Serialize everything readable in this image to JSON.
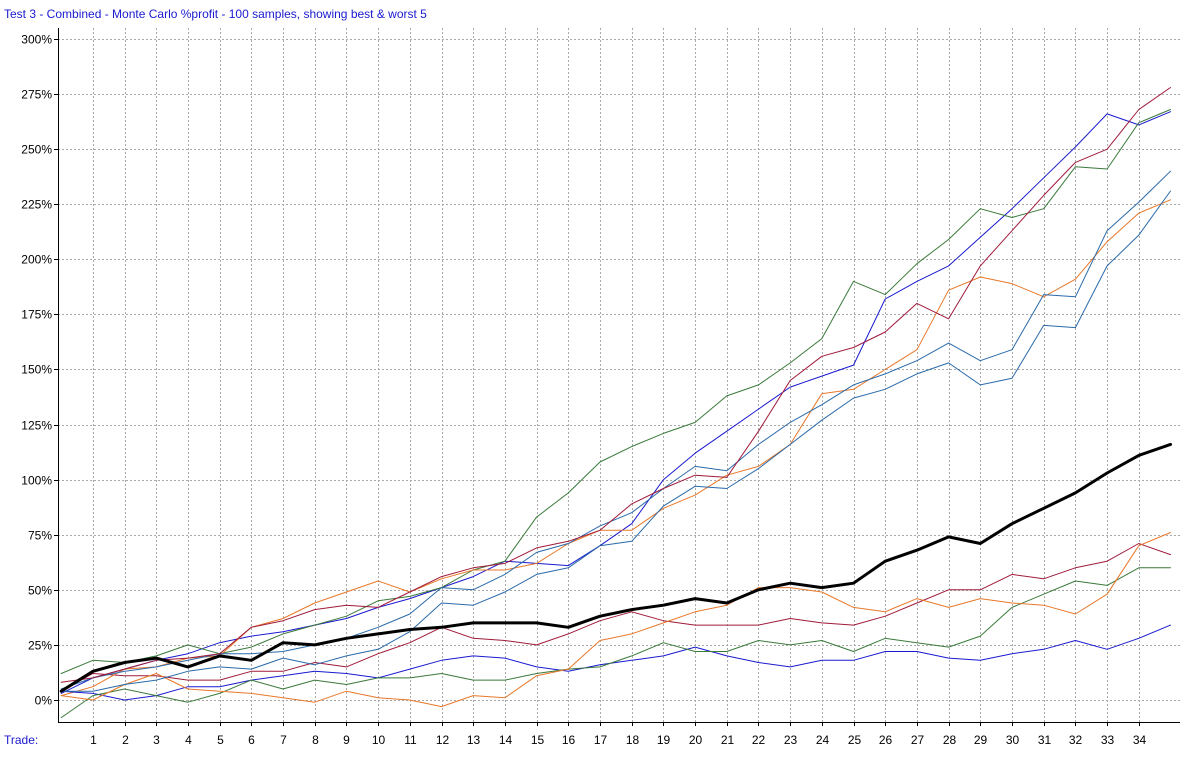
{
  "chart_data": {
    "type": "line",
    "title": "Test 3 - Combined - Monte Carlo %profit - 100 samples, showing best & worst 5",
    "xlabel": "Trade:",
    "ylabel": "",
    "x": [
      0,
      1,
      2,
      3,
      4,
      5,
      6,
      7,
      8,
      9,
      10,
      11,
      12,
      13,
      14,
      15,
      16,
      17,
      18,
      19,
      20,
      21,
      22,
      23,
      24,
      25,
      26,
      27,
      28,
      29,
      30,
      31,
      32,
      33,
      34,
      35
    ],
    "xticks": [
      1,
      2,
      3,
      4,
      5,
      6,
      7,
      8,
      9,
      10,
      11,
      12,
      13,
      14,
      15,
      16,
      17,
      18,
      19,
      20,
      21,
      22,
      23,
      24,
      25,
      26,
      27,
      28,
      29,
      30,
      31,
      32,
      33,
      34
    ],
    "xlim": [
      -0.1,
      35.3
    ],
    "yticks": [
      0,
      25,
      50,
      75,
      100,
      125,
      150,
      175,
      200,
      225,
      250,
      275,
      300
    ],
    "ytick_labels": [
      "0%",
      "25%",
      "50%",
      "75%",
      "100%",
      "125%",
      "150%",
      "175%",
      "200%",
      "225%",
      "250%",
      "275%",
      "300%"
    ],
    "ylim": [
      -10,
      305
    ],
    "grid": true,
    "legend": "none",
    "series": [
      {
        "color": "#000000",
        "width": 3,
        "values": [
          4,
          13,
          17,
          19,
          15,
          20,
          18,
          26,
          25,
          28,
          30,
          32,
          33,
          35,
          35,
          35,
          33,
          38,
          41,
          43,
          46,
          44,
          50,
          53,
          51,
          53,
          63,
          68,
          74,
          71,
          80,
          87,
          94,
          103,
          111,
          116
        ]
      },
      {
        "color": "#1a1ad0",
        "width": 1,
        "values": [
          3,
          10,
          14,
          18,
          21,
          26,
          29,
          31,
          34,
          37,
          42,
          46,
          51,
          56,
          63,
          62,
          61,
          70,
          80,
          100,
          112,
          122,
          132,
          142,
          147,
          152,
          182,
          190,
          197,
          210,
          223,
          237,
          251,
          266,
          261,
          267
        ]
      },
      {
        "color": "#3a7a3a",
        "width": 1,
        "values": [
          12,
          18,
          17,
          20,
          25,
          21,
          24,
          30,
          34,
          38,
          45,
          47,
          51,
          59,
          63,
          83,
          94,
          108,
          115,
          121,
          126,
          138,
          143,
          153,
          164,
          190,
          184,
          198,
          209,
          223,
          219,
          223,
          242,
          241,
          262,
          268
        ]
      },
      {
        "color": "#a01a3a",
        "width": 1,
        "values": [
          4,
          12,
          11,
          11,
          9,
          9,
          13,
          13,
          17,
          15,
          21,
          26,
          33,
          28,
          27,
          25,
          30,
          36,
          40,
          36,
          34,
          34,
          34,
          37,
          35,
          34,
          38,
          44,
          50,
          50,
          57,
          55,
          60,
          63,
          71,
          66
        ]
      },
      {
        "color": "#e8782a",
        "width": 1,
        "values": [
          2,
          6,
          14,
          15,
          19,
          20,
          33,
          37,
          44,
          49,
          54,
          49,
          55,
          59,
          59,
          62,
          71,
          77,
          77,
          87,
          93,
          102,
          106,
          116,
          139,
          141,
          150,
          159,
          186,
          192,
          189,
          183,
          191,
          208,
          221,
          227
        ]
      },
      {
        "color": "#2a6aaa",
        "width": 1,
        "values": [
          5,
          10,
          13,
          15,
          18,
          21,
          21,
          22,
          25,
          28,
          33,
          39,
          51,
          50,
          57,
          67,
          71,
          79,
          85,
          96,
          106,
          104,
          116,
          126,
          134,
          143,
          148,
          154,
          162,
          154,
          159,
          184,
          183,
          213,
          226,
          240
        ]
      },
      {
        "color": "#1a1ad0",
        "width": 1,
        "values": [
          4,
          3,
          0,
          2,
          6,
          6,
          9,
          11,
          13,
          12,
          10,
          14,
          18,
          20,
          19,
          15,
          13,
          16,
          18,
          20,
          24,
          20,
          17,
          15,
          18,
          18,
          22,
          22,
          19,
          18,
          21,
          23,
          27,
          23,
          28,
          34
        ]
      },
      {
        "color": "#3a7a3a",
        "width": 1,
        "values": [
          -8,
          2,
          5,
          2,
          -1,
          3,
          9,
          5,
          9,
          7,
          10,
          10,
          12,
          9,
          9,
          12,
          14,
          15,
          20,
          26,
          22,
          22,
          27,
          25,
          27,
          22,
          28,
          26,
          24,
          29,
          42,
          48,
          54,
          52,
          60,
          60
        ]
      },
      {
        "color": "#a01a3a",
        "width": 1,
        "values": [
          8,
          10,
          14,
          18,
          19,
          21,
          33,
          36,
          41,
          43,
          42,
          49,
          56,
          60,
          62,
          69,
          72,
          77,
          89,
          96,
          102,
          101,
          122,
          145,
          156,
          160,
          167,
          180,
          173,
          197,
          213,
          229,
          244,
          250,
          268,
          278
        ]
      },
      {
        "color": "#e8782a",
        "width": 1,
        "values": [
          2,
          0,
          7,
          12,
          5,
          4,
          3,
          1,
          -1,
          4,
          1,
          0,
          -3,
          2,
          1,
          11,
          14,
          27,
          30,
          35,
          40,
          43,
          51,
          51,
          49,
          42,
          40,
          46,
          42,
          46,
          44,
          43,
          39,
          48,
          70,
          76
        ]
      },
      {
        "color": "#2a6aaa",
        "width": 1,
        "values": [
          4,
          4,
          7,
          9,
          13,
          15,
          14,
          19,
          16,
          20,
          23,
          31,
          44,
          43,
          49,
          57,
          60,
          70,
          72,
          88,
          97,
          96,
          105,
          116,
          127,
          137,
          141,
          148,
          153,
          143,
          146,
          170,
          169,
          197,
          211,
          231
        ]
      }
    ]
  }
}
